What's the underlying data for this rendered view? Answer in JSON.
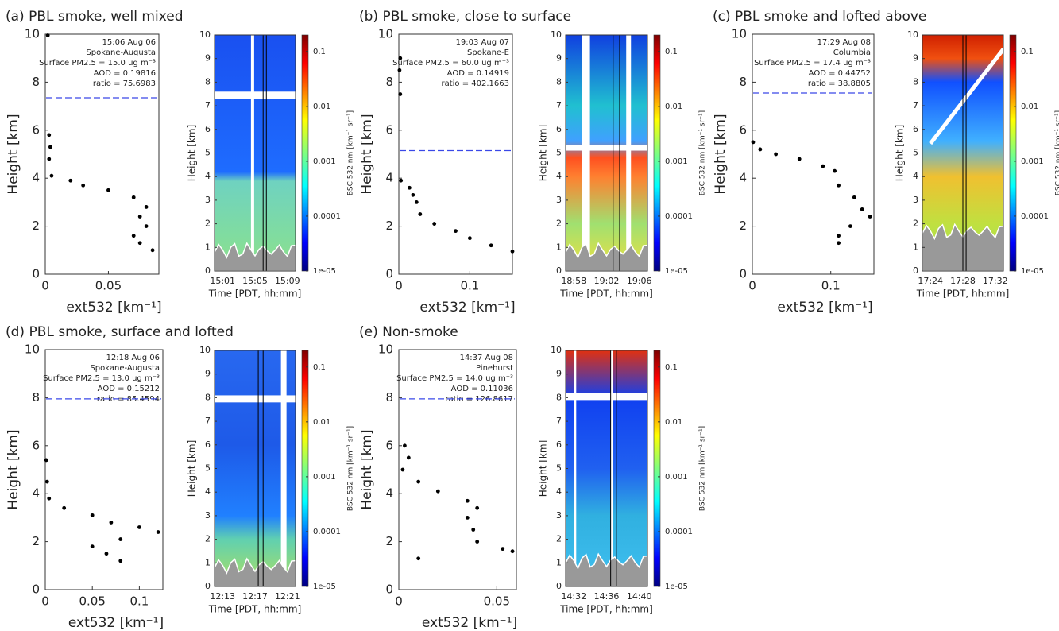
{
  "chart_data": [
    {
      "type": "scatter",
      "title": "(a) PBL smoke, well mixed",
      "annotations": [
        "15:06 Aug 06",
        "Spokane-Augusta",
        "Surface PM2.5 = 15.0 ug m⁻³",
        "AOD = 0.19816",
        "ratio = 75.6983"
      ],
      "xlabel": "ext532 [km⁻¹]",
      "ylabel": "Height [km]",
      "xlim": [
        0,
        0.09
      ],
      "xticks": [
        0,
        0.05
      ],
      "ylim": [
        0,
        10
      ],
      "yticks": [
        0,
        2,
        4,
        6,
        8,
        10
      ],
      "color": "#000000",
      "pbl_height": 7.35,
      "pbl_color": "#3a48e8",
      "x": [
        0.002,
        0.003,
        0.004,
        0.003,
        0.005,
        0.02,
        0.03,
        0.05,
        0.07,
        0.08,
        0.075,
        0.08,
        0.07,
        0.075,
        0.085
      ],
      "values": [
        9.95,
        5.8,
        5.3,
        4.8,
        4.1,
        3.9,
        3.7,
        3.5,
        3.2,
        2.8,
        2.4,
        2.0,
        1.6,
        1.3,
        1.0
      ]
    },
    {
      "type": "curtain",
      "xlabel": "Time [PDT, hh:mm]",
      "ylabel": "Height [km]",
      "ylim": [
        0,
        10
      ],
      "yticks": [
        0,
        1,
        2,
        3,
        4,
        5,
        6,
        7,
        8,
        9,
        10
      ],
      "xticks": [
        "15:01",
        "15:05",
        "15:09"
      ],
      "clabel": "BSC 532 nm [km⁻¹ sr⁻¹]",
      "clim": [
        1e-05,
        0.2
      ],
      "clog": true,
      "cticks": [
        0.1,
        0.01,
        0.001,
        0.0001,
        {
          "value": 1e-05,
          "label": "1e-05"
        }
      ]
    },
    {
      "type": "scatter",
      "title": "(b) PBL smoke, close to surface",
      "annotations": [
        "19:03 Aug 07",
        "Spokane-E",
        "Surface PM2.5 = 60.0 ug m⁻³",
        "AOD = 0.14919",
        "ratio = 402.1663"
      ],
      "xlabel": "ext532 [km⁻¹]",
      "ylabel": "Height [km]",
      "xlim": [
        0,
        0.16
      ],
      "xticks": [
        0,
        0.1
      ],
      "ylim": [
        0,
        10
      ],
      "yticks": [
        0,
        2,
        4,
        6,
        8,
        10
      ],
      "color": "#000000",
      "pbl_height": 5.15,
      "pbl_color": "#3a48e8",
      "x": [
        0.002,
        0.001,
        0.002,
        0.003,
        0.015,
        0.02,
        0.025,
        0.03,
        0.05,
        0.08,
        0.1,
        0.13,
        0.16
      ],
      "values": [
        9.0,
        8.5,
        7.5,
        3.9,
        3.6,
        3.3,
        3.0,
        2.5,
        2.1,
        1.8,
        1.5,
        1.2,
        0.95
      ]
    },
    {
      "type": "curtain",
      "xlabel": "Time [PDT, hh:mm]",
      "ylabel": "Height [km]",
      "ylim": [
        0,
        10
      ],
      "yticks": [
        0,
        1,
        2,
        3,
        4,
        5,
        6,
        7,
        8,
        9,
        10
      ],
      "xticks": [
        "18:58",
        "19:02",
        "19:06"
      ],
      "clabel": "BSC 532 nm [km⁻¹ sr⁻¹]",
      "clim": [
        1e-05,
        0.2
      ],
      "clog": true,
      "cticks": [
        0.1,
        0.01,
        0.001,
        0.0001,
        {
          "value": 1e-05,
          "label": "1e-05"
        }
      ]
    },
    {
      "type": "scatter",
      "title": "(c) PBL smoke and lofted above",
      "annotations": [
        "17:29 Aug 08",
        "Columbia",
        "Surface PM2.5 = 17.4 ug m⁻³",
        "AOD = 0.44752",
        "ratio = 38.8805"
      ],
      "xlabel": "ext532 [km⁻¹]",
      "ylabel": "Height [km]",
      "xlim": [
        0,
        0.155
      ],
      "xticks": [
        0,
        0.1
      ],
      "ylim": [
        0,
        10
      ],
      "yticks": [
        0,
        2,
        4,
        6,
        8,
        10
      ],
      "color": "#000000",
      "pbl_height": 7.55,
      "pbl_color": "#3a48e8",
      "x": [
        0.001,
        0.01,
        0.03,
        0.06,
        0.09,
        0.105,
        0.11,
        0.13,
        0.14,
        0.15,
        0.125,
        0.11,
        0.11
      ],
      "values": [
        5.5,
        5.2,
        5.0,
        4.8,
        4.5,
        4.3,
        3.7,
        3.2,
        2.7,
        2.4,
        2.0,
        1.6,
        1.3
      ]
    },
    {
      "type": "curtain",
      "xlabel": "Time [PDT, hh:mm]",
      "ylabel": "Height [km]",
      "ylim": [
        0,
        10
      ],
      "yticks": [
        0,
        1,
        2,
        3,
        4,
        5,
        6,
        7,
        8,
        9,
        10
      ],
      "xticks": [
        "17:24",
        "17:28",
        "17:32"
      ],
      "clabel": "BSC 532 nm [km⁻¹ sr⁻¹]",
      "clim": [
        1e-05,
        0.2
      ],
      "clog": true,
      "cticks": [
        0.1,
        0.01,
        0.001,
        0.0001,
        {
          "value": 1e-05,
          "label": "1e-05"
        }
      ]
    },
    {
      "type": "scatter",
      "title": "(d) PBL smoke, surface and lofted",
      "annotations": [
        "12:18 Aug 06",
        "Spokane-Augusta",
        "Surface PM2.5 = 13.0 ug m⁻³",
        "AOD = 0.15212",
        "ratio = 85.4594"
      ],
      "xlabel": "ext532 [km⁻¹]",
      "ylabel": "Height [km]",
      "xlim": [
        0,
        0.125
      ],
      "xticks": [
        0,
        0.05,
        0.1
      ],
      "ylim": [
        0,
        10
      ],
      "yticks": [
        0,
        2,
        4,
        6,
        8,
        10
      ],
      "color": "#000000",
      "pbl_height": 7.95,
      "pbl_color": "#3a48e8",
      "x": [
        0.001,
        0.002,
        0.004,
        0.02,
        0.05,
        0.07,
        0.1,
        0.12,
        0.08,
        0.05,
        0.065,
        0.08
      ],
      "values": [
        5.4,
        4.5,
        3.8,
        3.4,
        3.1,
        2.8,
        2.6,
        2.4,
        2.1,
        1.8,
        1.5,
        1.2
      ]
    },
    {
      "type": "curtain",
      "xlabel": "Time [PDT, hh:mm]",
      "ylabel": "Height [km]",
      "ylim": [
        0,
        10
      ],
      "yticks": [
        0,
        1,
        2,
        3,
        4,
        5,
        6,
        7,
        8,
        9,
        10
      ],
      "xticks": [
        "12:13",
        "12:17",
        "12:21"
      ],
      "clabel": "BSC 532 nm [km⁻¹ sr⁻¹]",
      "clim": [
        1e-05,
        0.2
      ],
      "clog": true,
      "cticks": [
        0.1,
        0.01,
        0.001,
        0.0001,
        {
          "value": 1e-05,
          "label": "1e-05"
        }
      ]
    },
    {
      "type": "scatter",
      "title": "(e) Non-smoke",
      "annotations": [
        "14:37 Aug 08",
        "Pinehurst",
        "Surface PM2.5 = 14.0 ug m⁻³",
        "AOD = 0.11036",
        "ratio = 126.8617"
      ],
      "xlabel": "ext532 [km⁻¹]",
      "ylabel": "Height [km]",
      "xlim": [
        0,
        0.06
      ],
      "xticks": [
        0,
        0.05
      ],
      "ylim": [
        0,
        10
      ],
      "yticks": [
        0,
        2,
        4,
        6,
        8,
        10
      ],
      "color": "#000000",
      "pbl_height": 7.95,
      "pbl_color": "#3a48e8",
      "x": [
        0.003,
        0.005,
        0.002,
        0.01,
        0.02,
        0.035,
        0.04,
        0.035,
        0.038,
        0.04,
        0.053,
        0.058,
        0.01
      ],
      "values": [
        6.0,
        5.5,
        5.0,
        4.5,
        4.1,
        3.7,
        3.4,
        3.0,
        2.5,
        2.0,
        1.7,
        1.6,
        1.3
      ]
    },
    {
      "type": "curtain",
      "xlabel": "Time [PDT, hh:mm]",
      "ylabel": "Height [km]",
      "ylim": [
        0,
        10
      ],
      "yticks": [
        0,
        1,
        2,
        3,
        4,
        5,
        6,
        7,
        8,
        9,
        10
      ],
      "xticks": [
        "14:32",
        "14:36",
        "14:40"
      ],
      "clabel": "BSC 532 nm [km⁻¹ sr⁻¹]",
      "clim": [
        1e-05,
        0.2
      ],
      "clog": true,
      "cticks": [
        0.1,
        0.01,
        0.001,
        0.0001,
        {
          "value": 1e-05,
          "label": "1e-05"
        }
      ]
    }
  ]
}
